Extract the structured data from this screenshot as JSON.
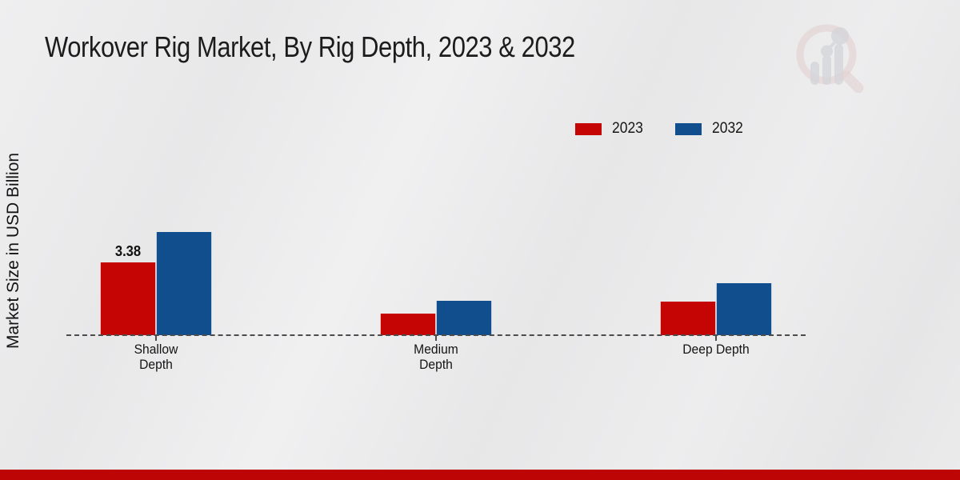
{
  "page": {
    "title": "Workover Rig Market, By Rig Depth, 2023 & 2032",
    "y_axis_label": "Market Size in USD Billion"
  },
  "legend": {
    "items": [
      {
        "label": "2023",
        "color": "#c50404"
      },
      {
        "label": "2032",
        "color": "#114e8e"
      }
    ]
  },
  "chart_data": {
    "type": "bar",
    "title": "Workover Rig Market, By Rig Depth, 2023 & 2032",
    "ylabel": "Market Size in USD Billion",
    "categories": [
      "Shallow\nDepth",
      "Medium\nDepth",
      "Deep Depth"
    ],
    "series": [
      {
        "name": "2023",
        "color": "#c50404",
        "values": [
          3.38,
          1.0,
          1.55
        ],
        "labels": [
          "3.38",
          "",
          ""
        ]
      },
      {
        "name": "2032",
        "color": "#114e8e",
        "values": [
          4.8,
          1.6,
          2.4
        ],
        "labels": [
          "",
          "",
          ""
        ]
      }
    ],
    "ylim": [
      0,
      5
    ],
    "grid": false,
    "baseline_style": "dashed",
    "legend_position": "top-right",
    "data_label_note": "only 2023 Shallow Depth bar is labeled: 3.38"
  },
  "branding": {
    "logo_name": "market-research-magnifier-logo",
    "footer_bar_color": "#bd0505",
    "logo_ring_color": "#dcb9b9",
    "logo_bars_color": "#bfc0c8"
  }
}
